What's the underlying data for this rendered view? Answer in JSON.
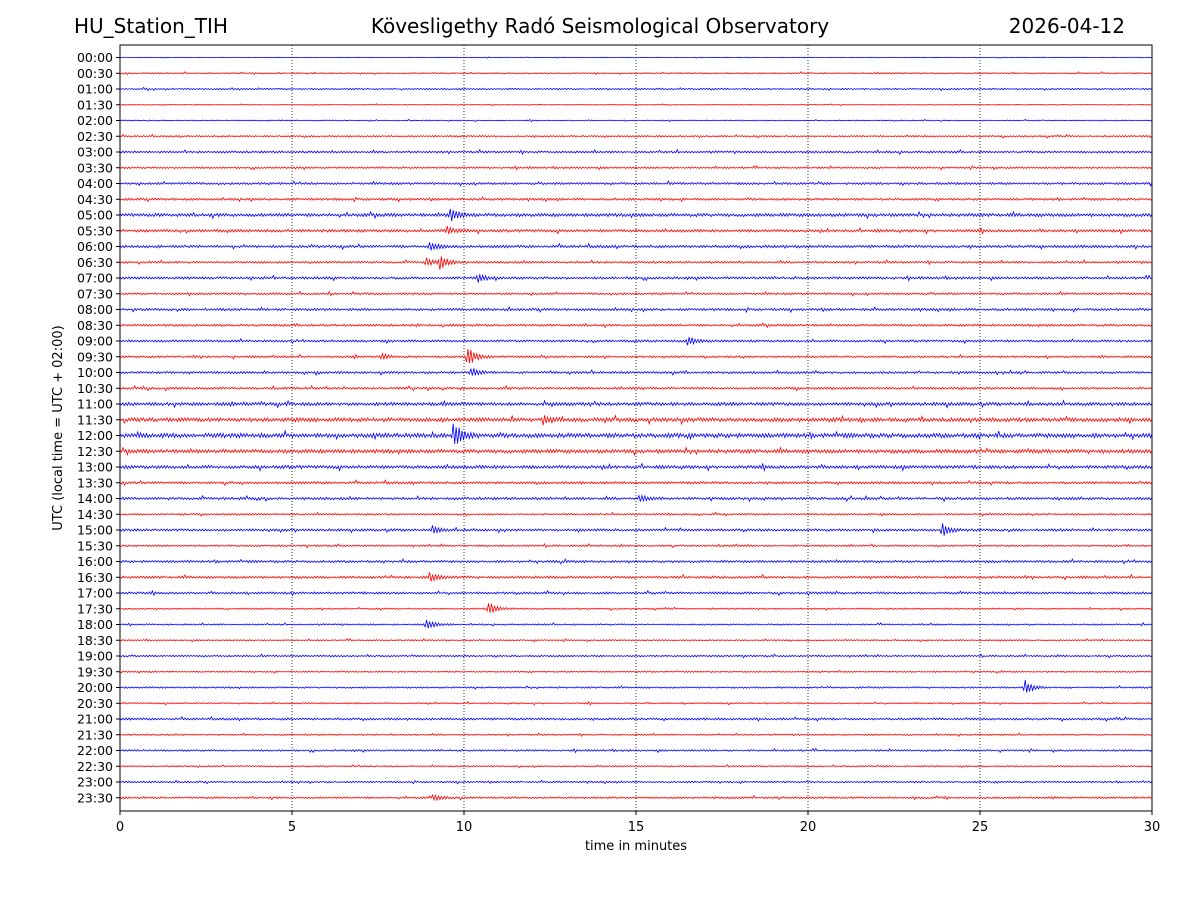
{
  "header": {
    "station": "HU_Station_TIH",
    "observatory": "Kövesligethy Radó Seismological Observatory",
    "date": "2026-04-12"
  },
  "chart_data": {
    "type": "line",
    "subtype": "helicorder",
    "title": "Kövesligethy Radó Seismological Observatory",
    "xlabel": "time in minutes",
    "ylabel": "UTC (local time = UTC + 02:00)",
    "xlim": [
      0,
      30
    ],
    "xticks": [
      0,
      5,
      10,
      15,
      20,
      25,
      30
    ],
    "grid": "vertical dotted lines at x ticks",
    "colors": {
      "even_trace": "#0000ff",
      "odd_trace": "#ff0000",
      "grid": "#000000"
    },
    "row_labels": [
      "00:00",
      "00:30",
      "01:00",
      "01:30",
      "02:00",
      "02:30",
      "03:00",
      "03:30",
      "04:00",
      "04:30",
      "05:00",
      "05:30",
      "06:00",
      "06:30",
      "07:00",
      "07:30",
      "08:00",
      "08:30",
      "09:00",
      "09:30",
      "10:00",
      "10:30",
      "11:00",
      "11:30",
      "12:00",
      "12:30",
      "13:00",
      "13:30",
      "14:00",
      "14:30",
      "15:00",
      "15:30",
      "16:00",
      "16:30",
      "17:00",
      "17:30",
      "18:00",
      "18:30",
      "19:00",
      "19:30",
      "20:00",
      "20:30",
      "21:00",
      "21:30",
      "22:00",
      "22:30",
      "23:00",
      "23:30"
    ],
    "noise_level": [
      0.2,
      0.45,
      0.5,
      0.3,
      0.35,
      0.55,
      0.7,
      0.6,
      0.75,
      0.75,
      1.1,
      0.9,
      0.9,
      0.7,
      0.8,
      0.7,
      0.8,
      0.75,
      0.75,
      0.7,
      0.75,
      0.75,
      1.1,
      1.3,
      1.5,
      1.25,
      1.1,
      0.8,
      0.85,
      0.6,
      0.8,
      0.6,
      0.8,
      0.8,
      0.75,
      0.5,
      0.5,
      0.45,
      0.55,
      0.45,
      0.55,
      0.5,
      0.7,
      0.5,
      0.6,
      0.5,
      0.55,
      0.65
    ],
    "events": [
      {
        "row": 10,
        "minute": 9.6,
        "amplitude": 7
      },
      {
        "row": 11,
        "minute": 9.5,
        "amplitude": 4
      },
      {
        "row": 12,
        "minute": 9.0,
        "amplitude": 5
      },
      {
        "row": 13,
        "minute": 9.3,
        "amplitude": 8
      },
      {
        "row": 13,
        "minute": 8.9,
        "amplitude": 4
      },
      {
        "row": 14,
        "minute": 10.4,
        "amplitude": 4
      },
      {
        "row": 18,
        "minute": 16.5,
        "amplitude": 5
      },
      {
        "row": 19,
        "minute": 10.1,
        "amplitude": 10
      },
      {
        "row": 19,
        "minute": 7.6,
        "amplitude": 3
      },
      {
        "row": 20,
        "minute": 10.2,
        "amplitude": 5
      },
      {
        "row": 23,
        "minute": 12.3,
        "amplitude": 5
      },
      {
        "row": 24,
        "minute": 9.7,
        "amplitude": 14
      },
      {
        "row": 28,
        "minute": 15.1,
        "amplitude": 4
      },
      {
        "row": 30,
        "minute": 23.9,
        "amplitude": 7
      },
      {
        "row": 30,
        "minute": 9.1,
        "amplitude": 4
      },
      {
        "row": 33,
        "minute": 9.0,
        "amplitude": 4
      },
      {
        "row": 35,
        "minute": 10.7,
        "amplitude": 7
      },
      {
        "row": 36,
        "minute": 8.9,
        "amplitude": 6
      },
      {
        "row": 40,
        "minute": 26.3,
        "amplitude": 8
      },
      {
        "row": 47,
        "minute": 9.1,
        "amplitude": 3
      }
    ]
  }
}
